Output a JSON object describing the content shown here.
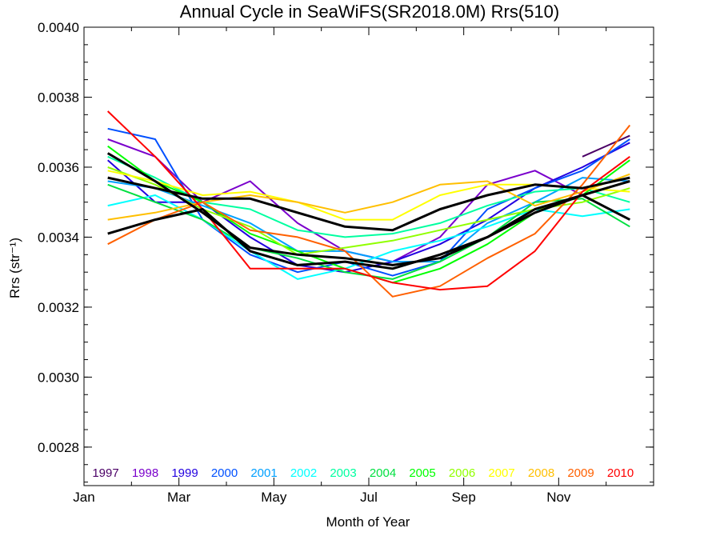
{
  "chart_data": {
    "type": "line",
    "title": "Annual Cycle in SeaWiFS(SR2018.0M) Rrs(510)",
    "xlabel": "Month of Year",
    "ylabel": "Rrs (str⁻¹)",
    "xlim": [
      1,
      13
    ],
    "ylim": [
      0.00269,
      0.004
    ],
    "x_tick_labels": [
      {
        "x": 1,
        "label": "Jan"
      },
      {
        "x": 3,
        "label": "Mar"
      },
      {
        "x": 5,
        "label": "May"
      },
      {
        "x": 7,
        "label": "Jul"
      },
      {
        "x": 9,
        "label": "Sep"
      },
      {
        "x": 11,
        "label": "Nov"
      }
    ],
    "y_ticks": [
      0.0028,
      0.003,
      0.0032,
      0.0034,
      0.0036,
      0.0038,
      0.004
    ],
    "y_tick_labels": [
      "0.0028",
      "0.0030",
      "0.0032",
      "0.0034",
      "0.0036",
      "0.0038",
      "0.0040"
    ],
    "x": [
      1.5,
      2.5,
      3.5,
      4.5,
      5.5,
      6.5,
      7.5,
      8.5,
      9.5,
      10.5,
      11.5,
      12.5
    ],
    "legend_position": "bottom",
    "series": [
      {
        "name": "1997",
        "color": "#4b0066",
        "values": [
          null,
          null,
          null,
          null,
          null,
          null,
          null,
          null,
          null,
          null,
          0.00363,
          0.00369
        ]
      },
      {
        "name": "1998",
        "color": "#7a00cc",
        "values": [
          0.00368,
          0.00363,
          0.0035,
          0.00356,
          0.00344,
          0.00336,
          0.00333,
          0.0034,
          0.00355,
          0.00359,
          0.00352,
          0.00345
        ]
      },
      {
        "name": "1999",
        "color": "#2200e0",
        "values": [
          0.00362,
          0.0035,
          0.0035,
          0.0034,
          0.00332,
          0.0033,
          0.00333,
          0.00338,
          0.00345,
          0.00354,
          0.0036,
          0.00367
        ]
      },
      {
        "name": "2000",
        "color": "#0050ff",
        "values": [
          0.00371,
          0.00368,
          0.00345,
          0.00335,
          0.0033,
          0.00333,
          0.00329,
          0.00333,
          0.00348,
          0.00354,
          0.00359,
          0.00368
        ]
      },
      {
        "name": "2001",
        "color": "#00a0ff",
        "values": [
          0.00356,
          0.00354,
          0.00349,
          0.00344,
          0.00336,
          0.00336,
          0.00333,
          0.00333,
          0.00344,
          0.0035,
          0.00357,
          0.00356
        ]
      },
      {
        "name": "2002",
        "color": "#00ffff",
        "values": [
          0.00349,
          0.00352,
          0.00345,
          0.00336,
          0.00328,
          0.00331,
          0.00336,
          0.00339,
          0.00343,
          0.00348,
          0.00346,
          0.00348
        ]
      },
      {
        "name": "2003",
        "color": "#00ffa0",
        "values": [
          0.00363,
          0.00357,
          0.0035,
          0.00348,
          0.00342,
          0.0034,
          0.00341,
          0.00344,
          0.00349,
          0.00353,
          0.00354,
          0.0035
        ]
      },
      {
        "name": "2004",
        "color": "#00e040",
        "values": [
          0.00355,
          0.0035,
          0.00345,
          0.00337,
          0.00334,
          0.0033,
          0.00328,
          0.00333,
          0.0034,
          0.0035,
          0.00351,
          0.00343
        ]
      },
      {
        "name": "2005",
        "color": "#00ff00",
        "values": [
          0.00366,
          0.00356,
          0.0035,
          0.00341,
          0.00336,
          0.00331,
          0.00327,
          0.00331,
          0.00338,
          0.00347,
          0.00352,
          0.00362
        ]
      },
      {
        "name": "2006",
        "color": "#90ff00",
        "values": [
          0.0036,
          0.00355,
          0.00348,
          0.00343,
          0.00335,
          0.00337,
          0.00339,
          0.00342,
          0.00345,
          0.00348,
          0.0035,
          0.00354
        ]
      },
      {
        "name": "2007",
        "color": "#ffff00",
        "values": [
          0.00359,
          0.00356,
          0.00352,
          0.00353,
          0.0035,
          0.00345,
          0.00345,
          0.00352,
          0.00355,
          0.00355,
          0.00354,
          0.00353
        ]
      },
      {
        "name": "2008",
        "color": "#ffbf00",
        "values": [
          0.00345,
          0.00347,
          0.0035,
          0.00352,
          0.0035,
          0.00347,
          0.0035,
          0.00355,
          0.00356,
          0.00349,
          0.00353,
          0.00358
        ]
      },
      {
        "name": "2009",
        "color": "#ff6000",
        "values": [
          0.00338,
          0.00345,
          0.0035,
          0.00342,
          0.0034,
          0.00336,
          0.00323,
          0.00326,
          0.00334,
          0.00341,
          0.00355,
          0.00372
        ]
      },
      {
        "name": "2010",
        "color": "#ff0000",
        "values": [
          0.00376,
          0.00363,
          0.00348,
          0.00331,
          0.00331,
          0.00331,
          0.00327,
          0.00325,
          0.00326,
          0.00336,
          0.00353,
          0.00363
        ]
      },
      {
        "name": "",
        "color": "#000000",
        "values": [
          0.00357,
          0.00354,
          0.00351,
          0.00351,
          0.00347,
          0.00343,
          0.00342,
          0.00348,
          0.00352,
          0.00355,
          0.00354,
          0.00357
        ]
      },
      {
        "name": "",
        "color": "#000000",
        "values": [
          0.00341,
          0.00345,
          0.00348,
          0.00336,
          0.00332,
          0.00333,
          0.00331,
          0.00335,
          0.0034,
          0.00347,
          0.00352,
          0.00356
        ]
      },
      {
        "name": "",
        "color": "#000000",
        "values": [
          0.00364,
          0.00356,
          0.00347,
          0.00337,
          0.00335,
          0.00334,
          0.00332,
          0.00334,
          0.0034,
          0.00348,
          0.00352,
          0.00345
        ]
      }
    ]
  }
}
